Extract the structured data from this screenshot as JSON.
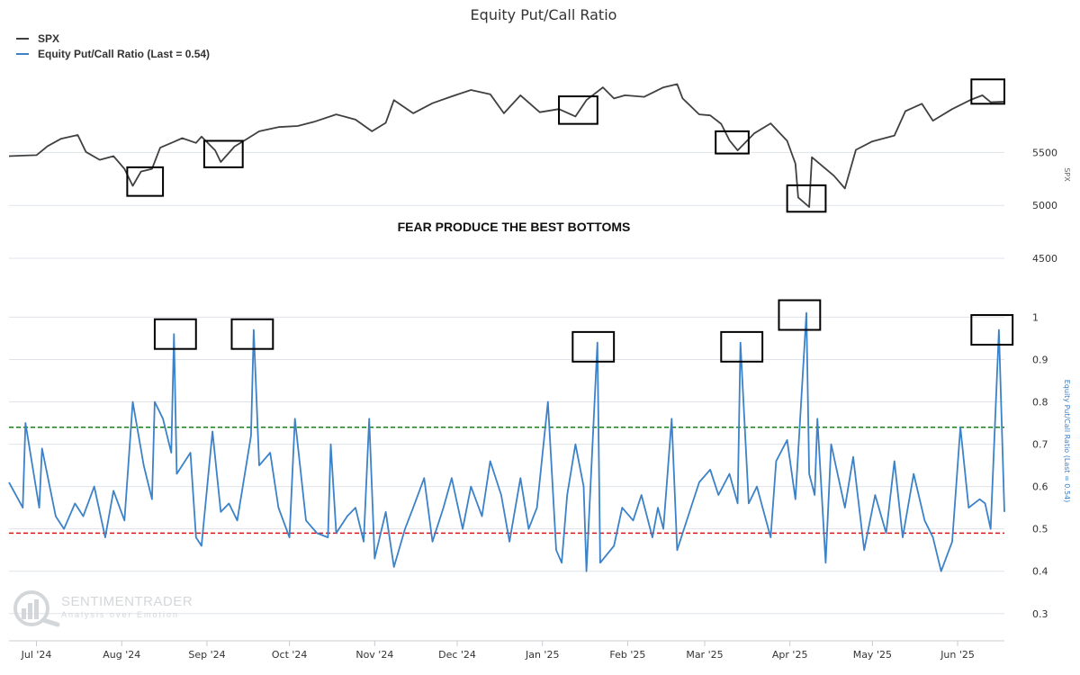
{
  "chart_data": {
    "type": "line",
    "title": "Equity Put/Call Ratio",
    "annotation": "FEAR PRODUCE THE BEST BOTTOMS",
    "watermark": {
      "brand": "SENTIMENTRADER",
      "tagline": "Analysis over Emotion"
    },
    "colors": {
      "spx": "#404040",
      "ratio": "#3c82c8",
      "upper": "#1a7f1a",
      "lower": "#d01818",
      "box": "#000000",
      "grid": "#dfe3e8"
    },
    "legend": {
      "placement": "top-left"
    },
    "grid": true,
    "x": {
      "labels": [
        "Jul '24",
        "Aug '24",
        "Sep '24",
        "Oct '24",
        "Nov '24",
        "Dec '24",
        "Jan '25",
        "Feb '25",
        "Mar '25",
        "Apr '25",
        "May '25",
        "Jun '25"
      ],
      "label_dates": [
        "2024-07-01",
        "2024-08-01",
        "2024-09-01",
        "2024-10-01",
        "2024-11-01",
        "2024-12-01",
        "2025-01-01",
        "2025-02-01",
        "2025-03-01",
        "2025-04-01",
        "2025-05-01",
        "2025-06-01"
      ],
      "range": [
        "2024-06-21",
        "2025-06-18"
      ]
    },
    "spx_axis": {
      "label": "SPX",
      "ticks": [
        "5500",
        "5000",
        "4500"
      ],
      "tick_values": [
        5500,
        5000,
        4500
      ],
      "range": [
        4390,
        6430
      ]
    },
    "ratio_axis": {
      "label": "Equity Put/Call Ratio (Last = 0.54)",
      "ticks": [
        "1",
        "0.9",
        "0.8",
        "0.7",
        "0.6",
        "0.5",
        "0.4",
        "0.3"
      ],
      "tick_values": [
        1,
        0.9,
        0.8,
        0.7,
        0.6,
        0.5,
        0.4,
        0.3
      ],
      "range": [
        0.24,
        1.02
      ]
    },
    "reference_lines": {
      "upper": 0.74,
      "lower": 0.49
    },
    "series": [
      {
        "name": "SPX",
        "points": [
          [
            "2024-06-21",
            5465
          ],
          [
            "2024-06-26",
            5470
          ],
          [
            "2024-07-01",
            5475
          ],
          [
            "2024-07-05",
            5560
          ],
          [
            "2024-07-10",
            5630
          ],
          [
            "2024-07-16",
            5665
          ],
          [
            "2024-07-19",
            5505
          ],
          [
            "2024-07-24",
            5430
          ],
          [
            "2024-07-29",
            5465
          ],
          [
            "2024-08-02",
            5345
          ],
          [
            "2024-08-05",
            5185
          ],
          [
            "2024-08-08",
            5320
          ],
          [
            "2024-08-12",
            5345
          ],
          [
            "2024-08-15",
            5545
          ],
          [
            "2024-08-20",
            5600
          ],
          [
            "2024-08-23",
            5635
          ],
          [
            "2024-08-28",
            5590
          ],
          [
            "2024-08-30",
            5650
          ],
          [
            "2024-09-04",
            5520
          ],
          [
            "2024-09-06",
            5410
          ],
          [
            "2024-09-11",
            5555
          ],
          [
            "2024-09-16",
            5635
          ],
          [
            "2024-09-20",
            5700
          ],
          [
            "2024-09-27",
            5740
          ],
          [
            "2024-10-04",
            5750
          ],
          [
            "2024-10-10",
            5790
          ],
          [
            "2024-10-18",
            5860
          ],
          [
            "2024-10-25",
            5810
          ],
          [
            "2024-10-31",
            5700
          ],
          [
            "2024-11-05",
            5780
          ],
          [
            "2024-11-08",
            5995
          ],
          [
            "2024-11-15",
            5870
          ],
          [
            "2024-11-22",
            5965
          ],
          [
            "2024-11-29",
            6030
          ],
          [
            "2024-12-06",
            6090
          ],
          [
            "2024-12-13",
            6050
          ],
          [
            "2024-12-18",
            5870
          ],
          [
            "2024-12-24",
            6040
          ],
          [
            "2024-12-31",
            5880
          ],
          [
            "2025-01-07",
            5910
          ],
          [
            "2025-01-13",
            5840
          ],
          [
            "2025-01-17",
            5995
          ],
          [
            "2025-01-23",
            6115
          ],
          [
            "2025-01-27",
            6010
          ],
          [
            "2025-01-31",
            6040
          ],
          [
            "2025-02-07",
            6025
          ],
          [
            "2025-02-14",
            6115
          ],
          [
            "2025-02-19",
            6145
          ],
          [
            "2025-02-21",
            6010
          ],
          [
            "2025-02-27",
            5860
          ],
          [
            "2025-03-03",
            5850
          ],
          [
            "2025-03-07",
            5770
          ],
          [
            "2025-03-10",
            5615
          ],
          [
            "2025-03-13",
            5520
          ],
          [
            "2025-03-19",
            5680
          ],
          [
            "2025-03-25",
            5775
          ],
          [
            "2025-03-31",
            5610
          ],
          [
            "2025-04-03",
            5395
          ],
          [
            "2025-04-04",
            5075
          ],
          [
            "2025-04-08",
            4985
          ],
          [
            "2025-04-09",
            5455
          ],
          [
            "2025-04-17",
            5280
          ],
          [
            "2025-04-21",
            5160
          ],
          [
            "2025-04-25",
            5525
          ],
          [
            "2025-05-01",
            5605
          ],
          [
            "2025-05-09",
            5660
          ],
          [
            "2025-05-13",
            5890
          ],
          [
            "2025-05-19",
            5960
          ],
          [
            "2025-05-23",
            5800
          ],
          [
            "2025-05-30",
            5910
          ],
          [
            "2025-06-06",
            6000
          ],
          [
            "2025-06-10",
            6040
          ],
          [
            "2025-06-13",
            5975
          ],
          [
            "2025-06-18",
            5980
          ]
        ]
      },
      {
        "name": "Equity Put/Call Ratio (Last = 0.54)",
        "points": [
          [
            "2024-06-21",
            0.61
          ],
          [
            "2024-06-26",
            0.55
          ],
          [
            "2024-06-27",
            0.75
          ],
          [
            "2024-07-02",
            0.55
          ],
          [
            "2024-07-03",
            0.69
          ],
          [
            "2024-07-08",
            0.53
          ],
          [
            "2024-07-11",
            0.5
          ],
          [
            "2024-07-15",
            0.56
          ],
          [
            "2024-07-18",
            0.53
          ],
          [
            "2024-07-22",
            0.6
          ],
          [
            "2024-07-26",
            0.48
          ],
          [
            "2024-07-29",
            0.59
          ],
          [
            "2024-08-02",
            0.52
          ],
          [
            "2024-08-05",
            0.8
          ],
          [
            "2024-08-09",
            0.65
          ],
          [
            "2024-08-12",
            0.57
          ],
          [
            "2024-08-13",
            0.8
          ],
          [
            "2024-08-16",
            0.76
          ],
          [
            "2024-08-19",
            0.68
          ],
          [
            "2024-08-20",
            0.96
          ],
          [
            "2024-08-21",
            0.63
          ],
          [
            "2024-08-26",
            0.68
          ],
          [
            "2024-08-28",
            0.48
          ],
          [
            "2024-08-30",
            0.46
          ],
          [
            "2024-09-03",
            0.73
          ],
          [
            "2024-09-06",
            0.54
          ],
          [
            "2024-09-09",
            0.56
          ],
          [
            "2024-09-12",
            0.52
          ],
          [
            "2024-09-17",
            0.72
          ],
          [
            "2024-09-18",
            0.97
          ],
          [
            "2024-09-20",
            0.65
          ],
          [
            "2024-09-24",
            0.68
          ],
          [
            "2024-09-27",
            0.55
          ],
          [
            "2024-10-01",
            0.48
          ],
          [
            "2024-10-03",
            0.76
          ],
          [
            "2024-10-07",
            0.52
          ],
          [
            "2024-10-11",
            0.49
          ],
          [
            "2024-10-15",
            0.48
          ],
          [
            "2024-10-16",
            0.7
          ],
          [
            "2024-10-18",
            0.49
          ],
          [
            "2024-10-22",
            0.53
          ],
          [
            "2024-10-25",
            0.55
          ],
          [
            "2024-10-28",
            0.47
          ],
          [
            "2024-10-30",
            0.76
          ],
          [
            "2024-11-01",
            0.43
          ],
          [
            "2024-11-05",
            0.54
          ],
          [
            "2024-11-08",
            0.41
          ],
          [
            "2024-11-12",
            0.5
          ],
          [
            "2024-11-15",
            0.55
          ],
          [
            "2024-11-19",
            0.62
          ],
          [
            "2024-11-22",
            0.47
          ],
          [
            "2024-11-26",
            0.55
          ],
          [
            "2024-11-29",
            0.62
          ],
          [
            "2024-12-03",
            0.5
          ],
          [
            "2024-12-06",
            0.6
          ],
          [
            "2024-12-10",
            0.53
          ],
          [
            "2024-12-13",
            0.66
          ],
          [
            "2024-12-17",
            0.58
          ],
          [
            "2024-12-20",
            0.47
          ],
          [
            "2024-12-24",
            0.62
          ],
          [
            "2024-12-27",
            0.5
          ],
          [
            "2024-12-30",
            0.55
          ],
          [
            "2025-01-03",
            0.8
          ],
          [
            "2025-01-06",
            0.45
          ],
          [
            "2025-01-08",
            0.42
          ],
          [
            "2025-01-10",
            0.58
          ],
          [
            "2025-01-13",
            0.7
          ],
          [
            "2025-01-16",
            0.6
          ],
          [
            "2025-01-17",
            0.4
          ],
          [
            "2025-01-21",
            0.94
          ],
          [
            "2025-01-22",
            0.42
          ],
          [
            "2025-01-27",
            0.46
          ],
          [
            "2025-01-30",
            0.55
          ],
          [
            "2025-02-03",
            0.52
          ],
          [
            "2025-02-06",
            0.58
          ],
          [
            "2025-02-10",
            0.48
          ],
          [
            "2025-02-12",
            0.55
          ],
          [
            "2025-02-14",
            0.5
          ],
          [
            "2025-02-17",
            0.76
          ],
          [
            "2025-02-19",
            0.45
          ],
          [
            "2025-02-21",
            0.49
          ],
          [
            "2025-02-24",
            0.55
          ],
          [
            "2025-02-27",
            0.61
          ],
          [
            "2025-03-03",
            0.64
          ],
          [
            "2025-03-06",
            0.58
          ],
          [
            "2025-03-10",
            0.63
          ],
          [
            "2025-03-13",
            0.56
          ],
          [
            "2025-03-14",
            0.94
          ],
          [
            "2025-03-17",
            0.56
          ],
          [
            "2025-03-20",
            0.6
          ],
          [
            "2025-03-25",
            0.48
          ],
          [
            "2025-03-27",
            0.66
          ],
          [
            "2025-03-31",
            0.71
          ],
          [
            "2025-04-03",
            0.57
          ],
          [
            "2025-04-07",
            1.01
          ],
          [
            "2025-04-08",
            0.63
          ],
          [
            "2025-04-10",
            0.58
          ],
          [
            "2025-04-11",
            0.76
          ],
          [
            "2025-04-14",
            0.42
          ],
          [
            "2025-04-16",
            0.7
          ],
          [
            "2025-04-21",
            0.55
          ],
          [
            "2025-04-24",
            0.67
          ],
          [
            "2025-04-28",
            0.45
          ],
          [
            "2025-05-02",
            0.58
          ],
          [
            "2025-05-06",
            0.49
          ],
          [
            "2025-05-09",
            0.66
          ],
          [
            "2025-05-12",
            0.48
          ],
          [
            "2025-05-16",
            0.63
          ],
          [
            "2025-05-20",
            0.52
          ],
          [
            "2025-05-23",
            0.48
          ],
          [
            "2025-05-26",
            0.4
          ],
          [
            "2025-05-30",
            0.47
          ],
          [
            "2025-06-02",
            0.74
          ],
          [
            "2025-06-05",
            0.55
          ],
          [
            "2025-06-09",
            0.57
          ],
          [
            "2025-06-11",
            0.56
          ],
          [
            "2025-06-13",
            0.5
          ],
          [
            "2025-06-16",
            0.97
          ],
          [
            "2025-06-18",
            0.54
          ]
        ]
      }
    ],
    "highlight_boxes": [
      {
        "series": "SPX",
        "from": "2024-08-03",
        "to": "2024-08-16",
        "low": 5090,
        "high": 5360
      },
      {
        "series": "SPX",
        "from": "2024-08-31",
        "to": "2024-09-14",
        "low": 5360,
        "high": 5610
      },
      {
        "series": "SPX",
        "from": "2025-01-07",
        "to": "2025-01-21",
        "low": 5770,
        "high": 6030
      },
      {
        "series": "SPX",
        "from": "2025-03-05",
        "to": "2025-03-17",
        "low": 5490,
        "high": 5700
      },
      {
        "series": "SPX",
        "from": "2025-03-31",
        "to": "2025-04-14",
        "low": 4940,
        "high": 5190
      },
      {
        "series": "SPX",
        "from": "2025-06-06",
        "to": "2025-06-18",
        "low": 5960,
        "high": 6190
      },
      {
        "series": "Equity Put/Call Ratio (Last = 0.54)",
        "from": "2024-08-13",
        "to": "2024-08-28",
        "low": 0.925,
        "high": 0.995
      },
      {
        "series": "Equity Put/Call Ratio (Last = 0.54)",
        "from": "2024-09-10",
        "to": "2024-09-25",
        "low": 0.925,
        "high": 0.995
      },
      {
        "series": "Equity Put/Call Ratio (Last = 0.54)",
        "from": "2025-01-12",
        "to": "2025-01-27",
        "low": 0.895,
        "high": 0.965
      },
      {
        "series": "Equity Put/Call Ratio (Last = 0.54)",
        "from": "2025-03-07",
        "to": "2025-03-22",
        "low": 0.895,
        "high": 0.965
      },
      {
        "series": "Equity Put/Call Ratio (Last = 0.54)",
        "from": "2025-03-28",
        "to": "2025-04-12",
        "low": 0.97,
        "high": 1.04
      },
      {
        "series": "Equity Put/Call Ratio (Last = 0.54)",
        "from": "2025-06-06",
        "to": "2025-06-21",
        "low": 0.935,
        "high": 1.005
      }
    ]
  }
}
